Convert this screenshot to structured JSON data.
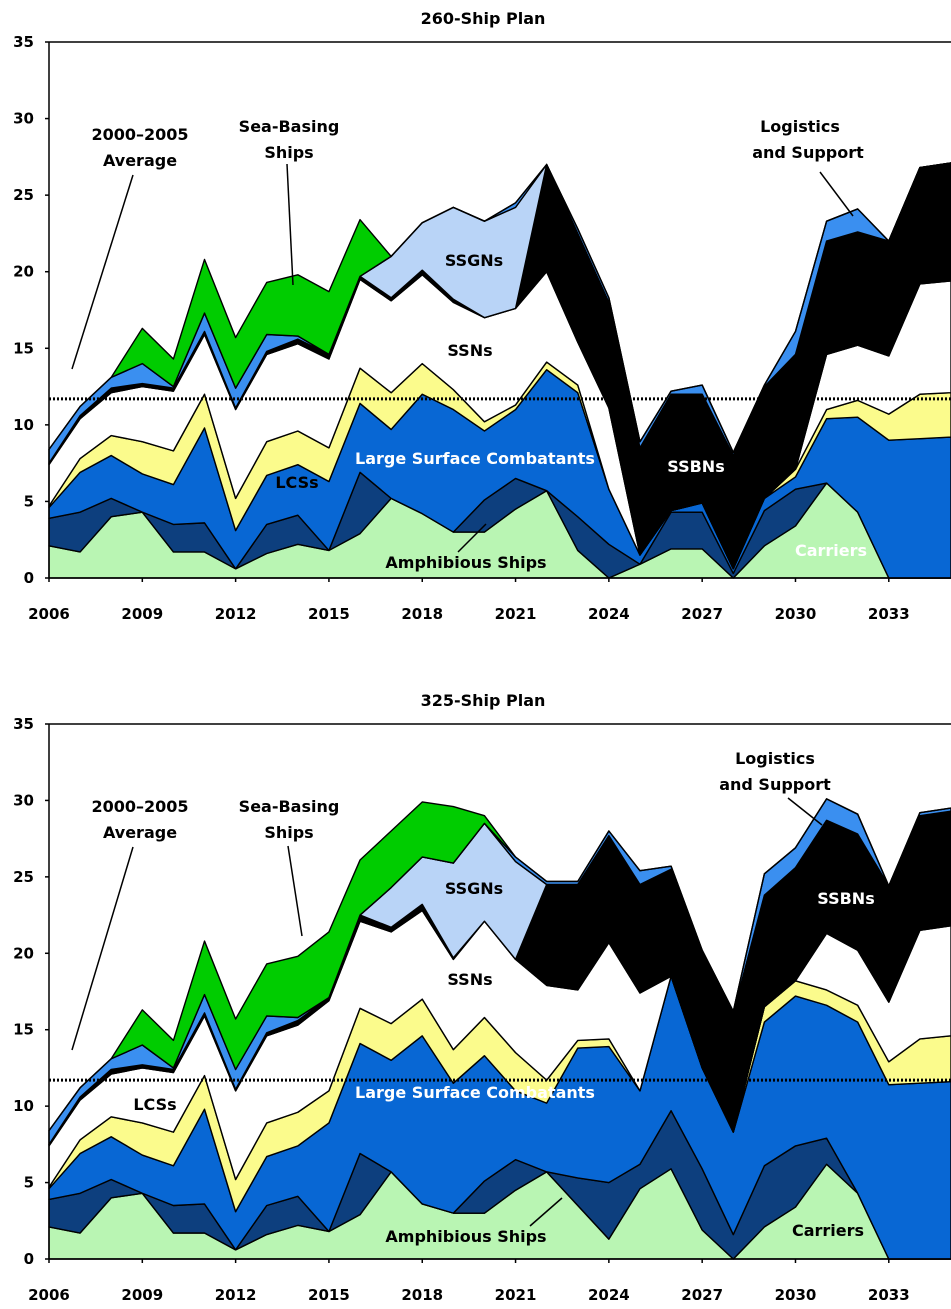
{
  "colors": {
    "amphibious": "#b9f5b3",
    "carriers": "#0d3f7e",
    "large_surface": "#0867d4",
    "lcs": "#fbfb8c",
    "ssn": "#ffffff",
    "ssbn": "#000000",
    "ssgn": "#b9d4f7",
    "logistics": "#3a8ff0",
    "seabasing": "#00cc00"
  },
  "chart_data": [
    {
      "type": "area",
      "title": "260-Ship Plan",
      "xlabel": "",
      "ylabel": "",
      "x": [
        2006,
        2007,
        2008,
        2009,
        2010,
        2011,
        2012,
        2013,
        2014,
        2015,
        2016,
        2017,
        2018,
        2019,
        2020,
        2021,
        2022,
        2023,
        2024,
        2025,
        2026,
        2027,
        2028,
        2029,
        2030,
        2031,
        2032,
        2033,
        2034,
        2035
      ],
      "x_ticks": [
        "2006",
        "2009",
        "2012",
        "2015",
        "2018",
        "2021",
        "2024",
        "2027",
        "2030",
        "2033"
      ],
      "y_ticks": [
        "0",
        "5",
        "10",
        "15",
        "20",
        "25",
        "30",
        "35"
      ],
      "ylim": [
        0,
        35
      ],
      "reference_value": 11.7,
      "series_keys": [
        "amphibious",
        "carriers",
        "large_surface",
        "lcs",
        "ssn",
        "ssbn",
        "ssgn",
        "logistics",
        "seabasing"
      ],
      "boundaries": [
        [
          2.1,
          1.7,
          4.0,
          4.3,
          1.7,
          1.7,
          0.6,
          1.6,
          2.2,
          1.8,
          2.9,
          5.2,
          4.2,
          3.0,
          3.0,
          4.5,
          5.7,
          1.8,
          0,
          0.9,
          1.9,
          1.9,
          0,
          2.1,
          3.4,
          6.2,
          4.3,
          0,
          0,
          0
        ],
        [
          3.9,
          4.3,
          5.2,
          4.3,
          3.5,
          3.6,
          0.6,
          3.5,
          4.1,
          1.8,
          6.9,
          5.2,
          4.2,
          3.0,
          5.1,
          6.5,
          5.7,
          4.0,
          2.2,
          0.9,
          4.3,
          4.3,
          0.3,
          4.4,
          5.8,
          6.2,
          4.3,
          0,
          0,
          0
        ],
        [
          4.6,
          6.9,
          8.0,
          6.8,
          6.1,
          9.8,
          3.1,
          6.7,
          7.4,
          6.3,
          11.4,
          9.7,
          12.0,
          11.0,
          9.6,
          11.0,
          13.6,
          12.1,
          5.8,
          1.5,
          4.4,
          4.9,
          0.6,
          5.2,
          6.6,
          10.4,
          10.5,
          9.0,
          9.1,
          9.2
        ],
        [
          4.7,
          7.8,
          9.3,
          8.9,
          8.3,
          12.0,
          5.2,
          8.9,
          9.6,
          8.5,
          13.7,
          12.1,
          14.0,
          12.3,
          10.2,
          11.3,
          14.1,
          12.6,
          5.8,
          1.5,
          4.4,
          4.9,
          0.6,
          5.2,
          7.1,
          11.0,
          11.6,
          10.7,
          12.0,
          12.1
        ],
        [
          7.4,
          10.4,
          12.1,
          12.5,
          12.2,
          15.9,
          11.0,
          14.6,
          15.3,
          14.3,
          19.5,
          18.1,
          19.8,
          18.0,
          17.0,
          17.6,
          20.0,
          15.4,
          11.1,
          1.5,
          4.4,
          4.9,
          0.6,
          5.2,
          7.1,
          14.6,
          15.2,
          14.5,
          19.2,
          19.4
        ],
        [
          7.5,
          10.6,
          12.4,
          12.7,
          12.4,
          16.1,
          11.1,
          14.8,
          15.6,
          14.6,
          19.7,
          18.3,
          20.1,
          18.2,
          17.0,
          17.6,
          27.0,
          22.5,
          18.0,
          8.5,
          12.0,
          12.0,
          8.0,
          12.5,
          14.6,
          22.0,
          22.6,
          22.0,
          26.8,
          27.1
        ],
        [
          7.5,
          10.6,
          12.4,
          12.7,
          12.4,
          16.1,
          11.1,
          14.8,
          15.6,
          14.6,
          19.7,
          21.0,
          23.2,
          24.2,
          23.3,
          24.2,
          27.0,
          22.5,
          18.0,
          8.5,
          12.0,
          12.0,
          8.0,
          12.5,
          14.6,
          22.0,
          22.6,
          22.0,
          26.8,
          27.1
        ],
        [
          8.4,
          11.2,
          13.1,
          14.0,
          12.5,
          17.3,
          12.4,
          15.9,
          15.8,
          14.6,
          19.7,
          21.0,
          23.2,
          24.2,
          23.3,
          24.5,
          27.0,
          22.8,
          18.3,
          8.9,
          12.2,
          12.6,
          8.2,
          12.6,
          16.1,
          23.3,
          24.1,
          22.0,
          26.8,
          27.1
        ],
        [
          8.4,
          11.2,
          13.1,
          16.3,
          14.3,
          20.8,
          15.7,
          19.3,
          19.8,
          18.7,
          23.4,
          21.0,
          23.2,
          24.2,
          23.3,
          24.5,
          27.0,
          22.8,
          18.3,
          8.9,
          12.2,
          12.6,
          8.2,
          12.6,
          16.1,
          23.3,
          24.1,
          22.0,
          26.8,
          27.1
        ]
      ],
      "annotations": {
        "avg_line1": "2000–2005",
        "avg_line2": "Average",
        "seabasing_line1": "Sea-Basing",
        "seabasing_line2": "Ships",
        "logistics_line1": "Logistics",
        "logistics_line2": "and Support",
        "ssgn": "SSGNs",
        "ssn": "SSNs",
        "lcs": "LCSs",
        "large_surface": "Large Surface Combatants",
        "ssbn": "SSBNs",
        "amphibious": "Amphibious Ships",
        "carriers": "Carriers"
      }
    },
    {
      "type": "area",
      "title": "325-Ship Plan",
      "xlabel": "",
      "ylabel": "",
      "x": [
        2006,
        2007,
        2008,
        2009,
        2010,
        2011,
        2012,
        2013,
        2014,
        2015,
        2016,
        2017,
        2018,
        2019,
        2020,
        2021,
        2022,
        2023,
        2024,
        2025,
        2026,
        2027,
        2028,
        2029,
        2030,
        2031,
        2032,
        2033,
        2034,
        2035
      ],
      "x_ticks": [
        "2006",
        "2009",
        "2012",
        "2015",
        "2018",
        "2021",
        "2024",
        "2027",
        "2030",
        "2033"
      ],
      "y_ticks": [
        "0",
        "5",
        "10",
        "15",
        "20",
        "25",
        "30",
        "35"
      ],
      "ylim": [
        0,
        35
      ],
      "reference_value": 11.7,
      "series_keys": [
        "amphibious",
        "carriers",
        "large_surface",
        "lcs",
        "ssn",
        "ssbn",
        "ssgn",
        "logistics",
        "seabasing"
      ],
      "boundaries": [
        [
          2.1,
          1.7,
          4.0,
          4.3,
          1.7,
          1.7,
          0.6,
          1.6,
          2.2,
          1.8,
          2.9,
          5.7,
          3.6,
          3.0,
          3.0,
          4.5,
          5.7,
          3.5,
          1.3,
          4.6,
          5.9,
          1.9,
          0,
          2.1,
          3.4,
          6.2,
          4.3,
          0,
          0,
          0
        ],
        [
          3.9,
          4.3,
          5.2,
          4.3,
          3.5,
          3.6,
          0.6,
          3.5,
          4.1,
          1.8,
          6.9,
          5.7,
          3.6,
          3.0,
          5.1,
          6.5,
          5.7,
          5.3,
          5.0,
          6.2,
          9.7,
          5.9,
          1.6,
          6.1,
          7.4,
          7.9,
          4.3,
          0,
          0,
          0
        ],
        [
          4.6,
          6.9,
          8.0,
          6.8,
          6.1,
          9.8,
          3.1,
          6.7,
          7.4,
          8.9,
          14.1,
          13.0,
          14.6,
          11.5,
          13.3,
          11.0,
          10.2,
          13.8,
          13.9,
          11.0,
          18.5,
          12.5,
          8.3,
          15.5,
          17.2,
          16.6,
          15.5,
          11.4,
          11.5,
          11.6
        ],
        [
          4.7,
          7.8,
          9.3,
          8.9,
          8.3,
          12.0,
          5.2,
          8.9,
          9.6,
          11.0,
          16.4,
          15.4,
          17.0,
          13.7,
          15.8,
          13.5,
          11.7,
          14.3,
          14.4,
          11.0,
          18.5,
          12.5,
          8.3,
          16.5,
          18.2,
          17.6,
          16.6,
          12.9,
          14.4,
          14.6
        ],
        [
          7.4,
          10.4,
          12.1,
          12.5,
          12.2,
          15.9,
          11.0,
          14.6,
          15.3,
          16.9,
          22.1,
          21.4,
          22.8,
          19.6,
          22.1,
          19.6,
          17.9,
          17.6,
          20.7,
          17.4,
          18.5,
          12.5,
          8.3,
          16.5,
          18.2,
          21.3,
          20.2,
          16.8,
          21.5,
          21.8
        ],
        [
          7.5,
          10.6,
          12.4,
          12.7,
          12.4,
          16.1,
          11.1,
          14.8,
          15.6,
          17.1,
          22.5,
          21.7,
          23.2,
          19.7,
          22.1,
          19.6,
          24.5,
          24.5,
          27.7,
          24.5,
          25.5,
          20.0,
          16.1,
          23.8,
          25.6,
          28.7,
          27.8,
          24.4,
          29.0,
          29.3
        ],
        [
          7.5,
          10.6,
          12.4,
          12.7,
          12.4,
          16.1,
          11.1,
          14.8,
          15.6,
          17.1,
          22.5,
          24.3,
          26.3,
          25.9,
          28.5,
          26.0,
          24.5,
          24.5,
          27.7,
          24.5,
          25.5,
          20.0,
          16.1,
          23.8,
          25.6,
          28.7,
          27.8,
          24.4,
          29.0,
          29.3
        ],
        [
          8.4,
          11.2,
          13.1,
          14.0,
          12.5,
          17.3,
          12.4,
          15.9,
          15.8,
          17.1,
          22.5,
          24.3,
          26.3,
          25.9,
          28.5,
          26.3,
          24.7,
          24.7,
          28.0,
          25.4,
          25.7,
          20.2,
          16.2,
          25.2,
          26.9,
          30.1,
          29.1,
          24.4,
          29.2,
          29.5
        ],
        [
          8.4,
          11.2,
          13.1,
          16.3,
          14.3,
          20.8,
          15.7,
          19.3,
          19.8,
          21.4,
          26.1,
          28.0,
          29.9,
          29.6,
          29.0,
          26.3,
          24.7,
          24.7,
          28.0,
          25.4,
          25.7,
          20.2,
          16.2,
          25.2,
          26.9,
          30.1,
          29.1,
          24.4,
          29.2,
          29.5
        ]
      ],
      "annotations": {
        "avg_line1": "2000–2005",
        "avg_line2": "Average",
        "seabasing_line1": "Sea-Basing",
        "seabasing_line2": "Ships",
        "logistics_line1": "Logistics",
        "logistics_line2": "and Support",
        "ssgn": "SSGNs",
        "ssn": "SSNs",
        "lcs": "LCSs",
        "large_surface": "Large Surface Combatants",
        "ssbn": "SSBNs",
        "amphibious": "Amphibious Ships",
        "carriers": "Carriers"
      }
    }
  ]
}
